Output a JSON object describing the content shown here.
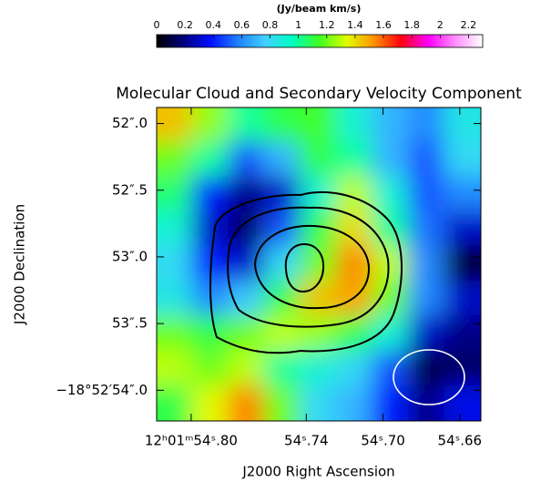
{
  "chart_data": {
    "type": "heatmap",
    "title": "Molecular Cloud and Secondary Velocity Component",
    "x_label": "J2000 Right Ascension",
    "y_label": "J2000 Declination",
    "colorbar_label": "(Jy/beam km/s)",
    "xlim": [
      54.818,
      54.649
    ],
    "ylim": [
      51.88,
      54.23
    ],
    "xticks": [
      {
        "value": 54.8,
        "label": "12ʰ01ᵐ54ˢ.80"
      },
      {
        "value": 54.74,
        "label": "54ˢ.74"
      },
      {
        "value": 54.7,
        "label": "54ˢ.70"
      },
      {
        "value": 54.66,
        "label": "54ˢ.66"
      }
    ],
    "yticks": [
      {
        "value": 52.0,
        "label": "52″.0"
      },
      {
        "value": 52.5,
        "label": "52″.5"
      },
      {
        "value": 53.0,
        "label": "53″.0"
      },
      {
        "value": 53.5,
        "label": "53″.5"
      },
      {
        "value": 54.0,
        "label": "−18°52′54″.0"
      }
    ],
    "zlim": [
      0,
      2.3
    ],
    "zticks": [
      0,
      0.2,
      0.4,
      0.6,
      0.8,
      1,
      1.2,
      1.4,
      1.6,
      1.8,
      2,
      2.2
    ],
    "colormap": [
      "#000000",
      "#000080",
      "#0010ff",
      "#2080ff",
      "#40d0ff",
      "#00ffc0",
      "#40ff20",
      "#e0ff00",
      "#ff9000",
      "#ff0010",
      "#ff00ff",
      "#ff90ff",
      "#ffffff"
    ],
    "z": [
      [
        1.45,
        1.25,
        1.0,
        1.1,
        1.15,
        0.9,
        0.7,
        0.6,
        0.85
      ],
      [
        1.2,
        1.0,
        0.5,
        0.7,
        1.1,
        1.0,
        0.7,
        0.5,
        0.8
      ],
      [
        1.05,
        0.4,
        0.2,
        0.3,
        0.9,
        1.3,
        0.9,
        0.5,
        0.6
      ],
      [
        0.9,
        0.3,
        0.15,
        0.5,
        1.1,
        1.4,
        1.0,
        0.55,
        0.3
      ],
      [
        0.8,
        0.4,
        0.3,
        0.8,
        1.2,
        1.55,
        1.3,
        0.6,
        0.05
      ],
      [
        0.85,
        0.6,
        0.75,
        1.1,
        1.45,
        1.5,
        1.2,
        0.6,
        0.3
      ],
      [
        1.2,
        1.1,
        1.2,
        1.3,
        1.25,
        1.1,
        0.9,
        0.3,
        0.2
      ],
      [
        1.3,
        1.2,
        1.3,
        1.0,
        0.9,
        0.8,
        0.5,
        0.1,
        0.15
      ],
      [
        1.1,
        1.35,
        1.55,
        1.2,
        0.8,
        0.7,
        0.4,
        0.2,
        0.35
      ]
    ]
  }
}
